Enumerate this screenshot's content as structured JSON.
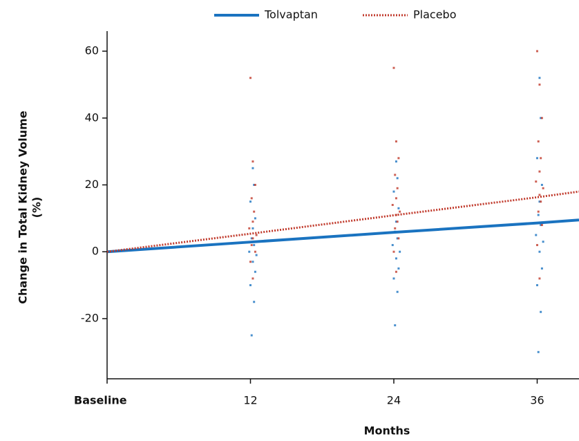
{
  "chart_data": {
    "type": "scatter",
    "xlabel": "Months",
    "ylabel": [
      "Change in Total Kidney Volume",
      "(%)"
    ],
    "xlim": [
      0,
      39.5
    ],
    "ylim": [
      -38,
      66
    ],
    "xticks": [
      {
        "value": 0,
        "label": "Baseline"
      },
      12,
      24,
      36
    ],
    "yticks": [
      -20,
      0,
      20,
      40,
      60
    ],
    "series": [
      {
        "name": "Tolvaptan",
        "color": "#1a73c0",
        "style": "solid",
        "x": [
          0,
          12,
          24,
          36,
          39.5
        ],
        "values": [
          0,
          2.9,
          5.8,
          8.6,
          9.5
        ],
        "points": {
          "x": [
            12.1,
            12.3,
            12.0,
            12.4,
            12.2,
            12.5,
            11.9,
            12.3,
            12.1,
            12.2,
            12.4,
            12.0,
            12.3,
            12.2,
            24.1,
            24.3,
            24.0,
            24.4,
            24.2,
            24.5,
            23.9,
            24.3,
            24.1,
            24.2,
            24.4,
            24.0,
            24.3,
            24.2,
            36.1,
            36.3,
            36.0,
            36.4,
            36.2,
            36.5,
            35.9,
            36.3,
            36.1,
            36.2,
            36.4,
            36.0,
            36.3,
            36.2
          ],
          "y": [
            -25,
            -15,
            -10,
            -6,
            -3,
            -1,
            0,
            2,
            4,
            7,
            10,
            15,
            20,
            25,
            -22,
            -12,
            -8,
            -5,
            -2,
            0,
            2,
            4,
            6,
            9,
            13,
            18,
            22,
            27,
            -30,
            -18,
            -10,
            -5,
            0,
            3,
            5,
            8,
            11,
            15,
            20,
            28,
            40,
            52
          ]
        }
      },
      {
        "name": "Placebo",
        "color": "#c0392b",
        "style": "dotted",
        "x": [
          0,
          12,
          24,
          36,
          39.5
        ],
        "values": [
          0,
          5.4,
          10.9,
          16.3,
          18
        ],
        "points": {
          "x": [
            12.2,
            12.0,
            12.4,
            12.1,
            12.3,
            12.2,
            12.5,
            11.9,
            12.2,
            12.3,
            12.1,
            12.4,
            12.2,
            12.0,
            24.2,
            24.0,
            24.4,
            24.1,
            24.3,
            24.2,
            24.5,
            23.9,
            24.2,
            24.3,
            24.1,
            24.4,
            24.2,
            24.0,
            36.2,
            36.0,
            36.4,
            36.1,
            36.3,
            36.2,
            36.5,
            35.9,
            36.2,
            36.3,
            36.1,
            36.4,
            36.2,
            36.0
          ],
          "y": [
            -8,
            -3,
            0,
            2,
            3,
            4,
            5,
            7,
            9,
            12,
            16,
            20,
            27,
            52,
            -6,
            0,
            4,
            7,
            9,
            11,
            12,
            14,
            16,
            19,
            23,
            28,
            33,
            55,
            -8,
            2,
            8,
            12,
            15,
            17,
            19,
            21,
            24,
            28,
            33,
            40,
            50,
            60
          ]
        }
      }
    ]
  }
}
